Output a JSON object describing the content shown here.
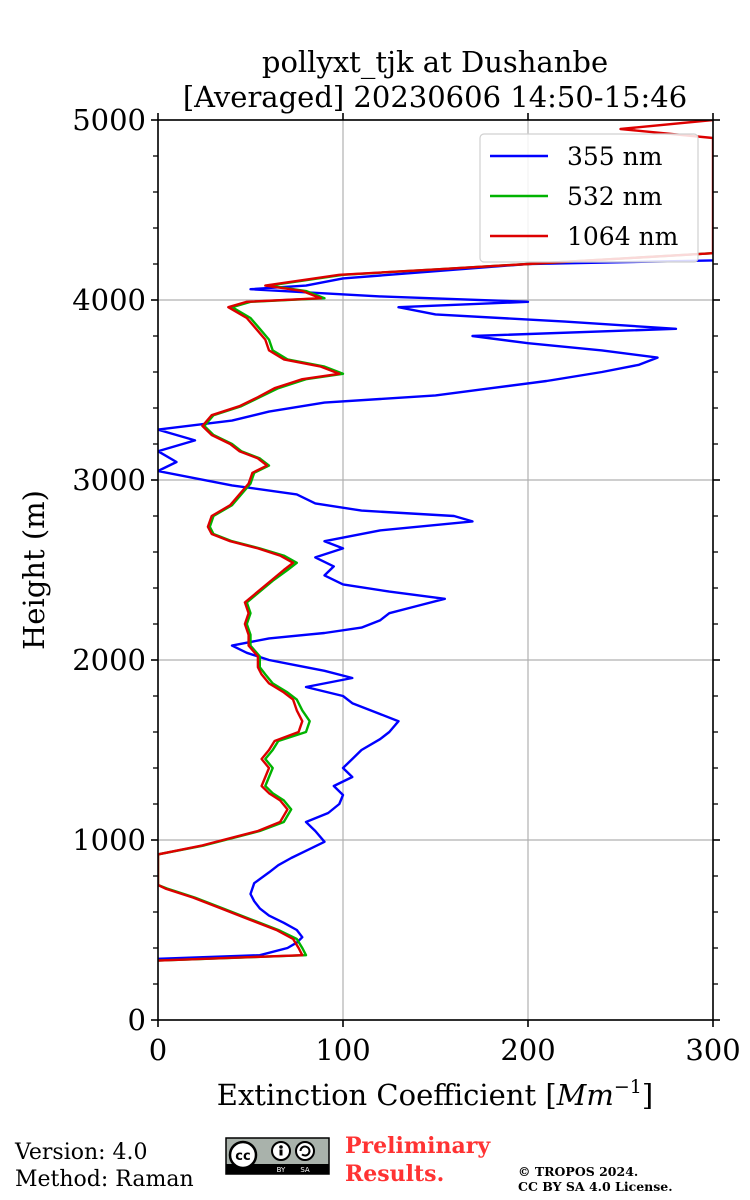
{
  "chart_data": {
    "type": "line",
    "title": "pollyxt_tjk at Dushanbe",
    "subtitle": "[Averaged] 20230606 14:50-15:46",
    "xlabel_main": "Extinction Coefficient [",
    "xlabel_unit": "Mm",
    "xlabel_exp": "−1",
    "xlabel_close": "]",
    "ylabel": "Height (m)",
    "xlim": [
      0,
      300
    ],
    "ylim": [
      0,
      5000
    ],
    "xticks": [
      0,
      100,
      200,
      300
    ],
    "yticks": [
      0,
      1000,
      2000,
      3000,
      4000,
      5000
    ],
    "xtick_labels": [
      "0",
      "100",
      "200",
      "300"
    ],
    "ytick_labels": [
      "0",
      "1000",
      "2000",
      "3000",
      "4000",
      "5000"
    ],
    "grid": true,
    "legend_position": "top-right",
    "series": [
      {
        "name": "355 nm",
        "color": "#0000ff",
        "points": [
          [
            0,
            340
          ],
          [
            55,
            360
          ],
          [
            70,
            400
          ],
          [
            75,
            430
          ],
          [
            78,
            460
          ],
          [
            75,
            500
          ],
          [
            68,
            540
          ],
          [
            60,
            580
          ],
          [
            55,
            620
          ],
          [
            52,
            660
          ],
          [
            50,
            700
          ],
          [
            52,
            760
          ],
          [
            60,
            820
          ],
          [
            65,
            860
          ],
          [
            72,
            900
          ],
          [
            80,
            940
          ],
          [
            90,
            990
          ],
          [
            85,
            1050
          ],
          [
            80,
            1100
          ],
          [
            92,
            1150
          ],
          [
            98,
            1200
          ],
          [
            100,
            1250
          ],
          [
            95,
            1300
          ],
          [
            105,
            1350
          ],
          [
            100,
            1400
          ],
          [
            105,
            1450
          ],
          [
            110,
            1500
          ],
          [
            120,
            1560
          ],
          [
            125,
            1600
          ],
          [
            130,
            1660
          ],
          [
            120,
            1700
          ],
          [
            105,
            1760
          ],
          [
            100,
            1800
          ],
          [
            80,
            1850
          ],
          [
            105,
            1900
          ],
          [
            90,
            1940
          ],
          [
            75,
            1970
          ],
          [
            60,
            2000
          ],
          [
            48,
            2040
          ],
          [
            40,
            2080
          ],
          [
            60,
            2120
          ],
          [
            90,
            2150
          ],
          [
            110,
            2180
          ],
          [
            120,
            2220
          ],
          [
            125,
            2260
          ],
          [
            140,
            2300
          ],
          [
            155,
            2340
          ],
          [
            125,
            2380
          ],
          [
            100,
            2420
          ],
          [
            90,
            2470
          ],
          [
            95,
            2520
          ],
          [
            85,
            2570
          ],
          [
            100,
            2620
          ],
          [
            90,
            2660
          ],
          [
            120,
            2720
          ],
          [
            170,
            2770
          ],
          [
            160,
            2800
          ],
          [
            110,
            2830
          ],
          [
            85,
            2870
          ],
          [
            75,
            2920
          ],
          [
            40,
            2970
          ],
          [
            0,
            3050
          ],
          [
            10,
            3100
          ],
          [
            0,
            3160
          ],
          [
            20,
            3220
          ],
          [
            0,
            3280
          ],
          [
            40,
            3330
          ],
          [
            60,
            3380
          ],
          [
            90,
            3430
          ],
          [
            150,
            3470
          ],
          [
            180,
            3510
          ],
          [
            210,
            3550
          ],
          [
            240,
            3600
          ],
          [
            260,
            3640
          ],
          [
            270,
            3680
          ],
          [
            240,
            3720
          ],
          [
            200,
            3760
          ],
          [
            170,
            3800
          ],
          [
            280,
            3840
          ],
          [
            220,
            3880
          ],
          [
            150,
            3920
          ],
          [
            130,
            3960
          ],
          [
            200,
            3990
          ],
          [
            120,
            4020
          ],
          [
            50,
            4060
          ],
          [
            80,
            4080
          ],
          [
            100,
            4120
          ],
          [
            150,
            4160
          ],
          [
            200,
            4200
          ],
          [
            300,
            4220
          ]
        ]
      },
      {
        "name": "532 nm",
        "color": "#00b300",
        "points": [
          [
            0,
            330
          ],
          [
            80,
            360
          ],
          [
            78,
            400
          ],
          [
            75,
            450
          ],
          [
            65,
            500
          ],
          [
            50,
            560
          ],
          [
            35,
            620
          ],
          [
            20,
            680
          ],
          [
            5,
            730
          ],
          [
            0,
            750
          ],
          [
            0,
            920
          ],
          [
            25,
            970
          ],
          [
            40,
            1010
          ],
          [
            55,
            1050
          ],
          [
            68,
            1100
          ],
          [
            72,
            1170
          ],
          [
            68,
            1220
          ],
          [
            62,
            1260
          ],
          [
            58,
            1300
          ],
          [
            60,
            1350
          ],
          [
            62,
            1400
          ],
          [
            58,
            1450
          ],
          [
            62,
            1500
          ],
          [
            65,
            1550
          ],
          [
            80,
            1600
          ],
          [
            82,
            1660
          ],
          [
            78,
            1720
          ],
          [
            75,
            1780
          ],
          [
            70,
            1820
          ],
          [
            62,
            1870
          ],
          [
            58,
            1920
          ],
          [
            55,
            1960
          ],
          [
            55,
            2020
          ],
          [
            50,
            2080
          ],
          [
            50,
            2140
          ],
          [
            48,
            2200
          ],
          [
            50,
            2260
          ],
          [
            48,
            2320
          ],
          [
            55,
            2380
          ],
          [
            62,
            2440
          ],
          [
            70,
            2500
          ],
          [
            75,
            2540
          ],
          [
            68,
            2580
          ],
          [
            55,
            2620
          ],
          [
            40,
            2660
          ],
          [
            30,
            2700
          ],
          [
            28,
            2740
          ],
          [
            30,
            2800
          ],
          [
            40,
            2860
          ],
          [
            45,
            2920
          ],
          [
            50,
            2980
          ],
          [
            52,
            3040
          ],
          [
            60,
            3080
          ],
          [
            55,
            3120
          ],
          [
            45,
            3160
          ],
          [
            40,
            3200
          ],
          [
            30,
            3250
          ],
          [
            25,
            3300
          ],
          [
            30,
            3360
          ],
          [
            45,
            3410
          ],
          [
            55,
            3460
          ],
          [
            65,
            3510
          ],
          [
            80,
            3560
          ],
          [
            100,
            3590
          ],
          [
            90,
            3630
          ],
          [
            70,
            3670
          ],
          [
            62,
            3720
          ],
          [
            60,
            3780
          ],
          [
            55,
            3840
          ],
          [
            50,
            3900
          ],
          [
            40,
            3960
          ],
          [
            50,
            3990
          ],
          [
            90,
            4010
          ],
          [
            80,
            4050
          ],
          [
            60,
            4080
          ],
          [
            80,
            4110
          ],
          [
            100,
            4140
          ],
          [
            150,
            4170
          ],
          [
            200,
            4200
          ],
          [
            300,
            4260
          ]
        ]
      },
      {
        "name": "1064 nm",
        "color": "#dd0000",
        "points": [
          [
            0,
            330
          ],
          [
            78,
            360
          ],
          [
            76,
            400
          ],
          [
            73,
            450
          ],
          [
            64,
            500
          ],
          [
            49,
            560
          ],
          [
            34,
            620
          ],
          [
            19,
            680
          ],
          [
            4,
            730
          ],
          [
            0,
            750
          ],
          [
            0,
            920
          ],
          [
            24,
            970
          ],
          [
            39,
            1010
          ],
          [
            54,
            1050
          ],
          [
            66,
            1100
          ],
          [
            70,
            1170
          ],
          [
            66,
            1220
          ],
          [
            60,
            1260
          ],
          [
            56,
            1300
          ],
          [
            58,
            1350
          ],
          [
            60,
            1400
          ],
          [
            56,
            1450
          ],
          [
            60,
            1500
          ],
          [
            63,
            1550
          ],
          [
            76,
            1600
          ],
          [
            78,
            1660
          ],
          [
            75,
            1720
          ],
          [
            73,
            1780
          ],
          [
            68,
            1820
          ],
          [
            60,
            1870
          ],
          [
            56,
            1920
          ],
          [
            54,
            1960
          ],
          [
            54,
            2020
          ],
          [
            49,
            2080
          ],
          [
            49,
            2140
          ],
          [
            47,
            2200
          ],
          [
            49,
            2260
          ],
          [
            47,
            2320
          ],
          [
            54,
            2380
          ],
          [
            61,
            2440
          ],
          [
            68,
            2500
          ],
          [
            73,
            2540
          ],
          [
            66,
            2580
          ],
          [
            54,
            2620
          ],
          [
            39,
            2660
          ],
          [
            29,
            2700
          ],
          [
            27,
            2740
          ],
          [
            29,
            2800
          ],
          [
            39,
            2860
          ],
          [
            44,
            2920
          ],
          [
            49,
            2980
          ],
          [
            51,
            3040
          ],
          [
            59,
            3080
          ],
          [
            54,
            3120
          ],
          [
            44,
            3160
          ],
          [
            39,
            3200
          ],
          [
            29,
            3250
          ],
          [
            24,
            3300
          ],
          [
            29,
            3360
          ],
          [
            44,
            3410
          ],
          [
            54,
            3460
          ],
          [
            63,
            3510
          ],
          [
            78,
            3560
          ],
          [
            98,
            3590
          ],
          [
            88,
            3630
          ],
          [
            68,
            3670
          ],
          [
            60,
            3720
          ],
          [
            58,
            3780
          ],
          [
            53,
            3840
          ],
          [
            48,
            3900
          ],
          [
            38,
            3960
          ],
          [
            48,
            3990
          ],
          [
            88,
            4010
          ],
          [
            78,
            4050
          ],
          [
            58,
            4080
          ],
          [
            78,
            4110
          ],
          [
            98,
            4140
          ],
          [
            150,
            4170
          ],
          [
            200,
            4200
          ],
          [
            300,
            4260
          ],
          [
            300,
            4900
          ],
          [
            250,
            4950
          ],
          [
            300,
            5000
          ]
        ]
      }
    ]
  },
  "footer": {
    "version": "Version: 4.0",
    "method": "Method: Raman",
    "preliminary_line1": "Preliminary",
    "preliminary_line2": "Results.",
    "copyright_line1": "© TROPOS 2024.",
    "copyright_line2": "CC BY SA 4.0 License.",
    "cc_badge_text": "cc",
    "cc_by": "BY",
    "cc_sa": "SA"
  }
}
